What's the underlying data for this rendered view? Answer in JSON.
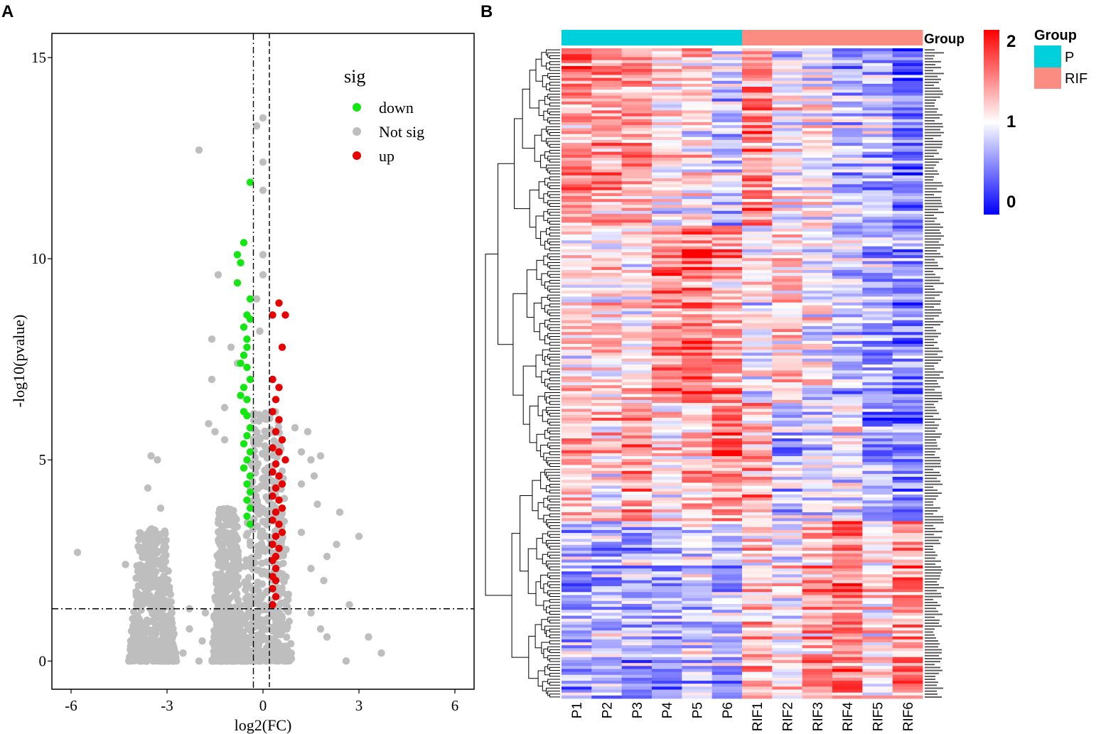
{
  "panel_a_letter": "A",
  "panel_b_letter": "B",
  "chart_data": [
    {
      "type": "scatter",
      "title": "",
      "xlabel": "log2(FC)",
      "ylabel": "-log10(pvalue)",
      "xlim": [
        -6.6,
        6.6
      ],
      "ylim": [
        -0.7,
        15.6
      ],
      "xticks": [
        -6,
        -3,
        0,
        3,
        6
      ],
      "yticks": [
        0,
        5,
        10,
        15
      ],
      "threshold_lines": {
        "x": [
          -0.3,
          0.2
        ],
        "y": 1.3
      },
      "legend": {
        "title": "sig",
        "placement": "top-right",
        "entries": [
          {
            "label": "down",
            "color": "#14e614"
          },
          {
            "label": "Not sig",
            "color": "#bebebe"
          },
          {
            "label": "up",
            "color": "#e60000"
          }
        ]
      },
      "colors": {
        "down": "#14e614",
        "notsig": "#bebebe",
        "up": "#e60000"
      },
      "clusters": [
        {
          "sig": "notsig",
          "xmin": -4.2,
          "xmax": -2.7,
          "ymin": 0.0,
          "ymax": 3.3,
          "count": 520
        },
        {
          "sig": "notsig",
          "xmin": -1.6,
          "xmax": -0.6,
          "ymin": 0.0,
          "ymax": 3.8,
          "count": 520
        },
        {
          "sig": "notsig",
          "xmin": -0.7,
          "xmax": 0.9,
          "ymin": 0.0,
          "ymax": 6.2,
          "count": 560
        }
      ],
      "points": {
        "notsig": [
          [
            -5.8,
            2.7
          ],
          [
            -4.3,
            2.4
          ],
          [
            -3.5,
            5.1
          ],
          [
            -3.3,
            5.0
          ],
          [
            -3.6,
            4.3
          ],
          [
            -3.2,
            3.8
          ],
          [
            -2.0,
            12.7
          ],
          [
            -0.2,
            13.3
          ],
          [
            0.0,
            13.5
          ],
          [
            0.0,
            12.4
          ],
          [
            0.0,
            11.7
          ],
          [
            0.0,
            10.1
          ],
          [
            0.0,
            9.6
          ],
          [
            -0.2,
            9.0
          ],
          [
            -0.1,
            8.2
          ],
          [
            -1.4,
            9.6
          ],
          [
            -1.6,
            8.0
          ],
          [
            -1.0,
            7.8
          ],
          [
            -0.8,
            7.4
          ],
          [
            -1.6,
            7.0
          ],
          [
            -1.2,
            6.3
          ],
          [
            -1.5,
            5.7
          ],
          [
            -1.2,
            5.5
          ],
          [
            -1.7,
            5.9
          ],
          [
            1.0,
            5.8
          ],
          [
            1.4,
            5.7
          ],
          [
            1.2,
            5.2
          ],
          [
            1.5,
            5.0
          ],
          [
            1.8,
            5.1
          ],
          [
            1.6,
            4.6
          ],
          [
            1.2,
            4.4
          ],
          [
            2.4,
            3.7
          ],
          [
            3.0,
            3.1
          ],
          [
            2.3,
            2.9
          ],
          [
            2.0,
            2.6
          ],
          [
            1.5,
            2.3
          ],
          [
            1.9,
            2.0
          ],
          [
            2.7,
            1.4
          ],
          [
            3.3,
            0.6
          ],
          [
            3.7,
            0.2
          ],
          [
            2.0,
            0.6
          ],
          [
            2.6,
            0.0
          ],
          [
            1.5,
            1.2
          ],
          [
            1.8,
            0.8
          ],
          [
            -2.3,
            1.3
          ],
          [
            -2.3,
            0.8
          ],
          [
            -2.5,
            0.2
          ],
          [
            -1.8,
            1.2
          ],
          [
            -1.9,
            0.5
          ],
          [
            -2.0,
            0.0
          ],
          [
            1.2,
            3.2
          ],
          [
            1.7,
            3.9
          ]
        ],
        "down": [
          [
            -0.4,
            11.9
          ],
          [
            -0.6,
            10.4
          ],
          [
            -0.8,
            10.1
          ],
          [
            -0.7,
            9.9
          ],
          [
            -0.8,
            9.4
          ],
          [
            -0.4,
            9.0
          ],
          [
            -0.5,
            8.6
          ],
          [
            -0.4,
            8.5
          ],
          [
            -0.6,
            8.3
          ],
          [
            -0.5,
            8.0
          ],
          [
            -0.5,
            7.8
          ],
          [
            -0.6,
            7.6
          ],
          [
            -0.7,
            7.4
          ],
          [
            -0.5,
            7.3
          ],
          [
            -0.4,
            7.0
          ],
          [
            -0.6,
            6.8
          ],
          [
            -0.7,
            6.6
          ],
          [
            -0.5,
            6.5
          ],
          [
            -0.6,
            6.2
          ],
          [
            -0.5,
            6.1
          ],
          [
            -0.4,
            5.8
          ],
          [
            -0.5,
            5.6
          ],
          [
            -0.6,
            5.4
          ],
          [
            -0.4,
            5.2
          ],
          [
            -0.5,
            5.0
          ],
          [
            -0.6,
            4.8
          ],
          [
            -0.4,
            4.6
          ],
          [
            -0.5,
            4.4
          ],
          [
            -0.4,
            4.2
          ],
          [
            -0.5,
            4.0
          ],
          [
            -0.4,
            3.8
          ],
          [
            -0.5,
            3.6
          ],
          [
            -0.4,
            3.4
          ]
        ],
        "up": [
          [
            0.5,
            8.9
          ],
          [
            0.7,
            8.6
          ],
          [
            0.3,
            8.6
          ],
          [
            0.6,
            7.8
          ],
          [
            0.3,
            7.0
          ],
          [
            0.5,
            6.8
          ],
          [
            0.4,
            6.5
          ],
          [
            0.3,
            6.2
          ],
          [
            0.5,
            6.0
          ],
          [
            0.4,
            5.7
          ],
          [
            0.6,
            5.5
          ],
          [
            0.3,
            5.3
          ],
          [
            0.5,
            5.2
          ],
          [
            0.7,
            5.0
          ],
          [
            0.4,
            4.9
          ],
          [
            0.3,
            4.7
          ],
          [
            0.5,
            4.6
          ],
          [
            0.6,
            4.4
          ],
          [
            0.4,
            4.3
          ],
          [
            0.3,
            4.1
          ],
          [
            0.5,
            4.0
          ],
          [
            0.6,
            3.8
          ],
          [
            0.4,
            3.7
          ],
          [
            0.3,
            3.5
          ],
          [
            0.5,
            3.4
          ],
          [
            0.6,
            3.2
          ],
          [
            0.4,
            3.1
          ],
          [
            0.3,
            2.9
          ],
          [
            0.5,
            2.8
          ],
          [
            0.4,
            2.6
          ],
          [
            0.3,
            2.5
          ],
          [
            0.4,
            2.3
          ],
          [
            0.3,
            2.1
          ],
          [
            0.4,
            2.0
          ],
          [
            0.3,
            1.8
          ],
          [
            0.4,
            1.6
          ],
          [
            0.3,
            1.4
          ]
        ]
      }
    },
    {
      "type": "heatmap",
      "title": "",
      "samples": [
        "P1",
        "P2",
        "P3",
        "P4",
        "P5",
        "P6",
        "RIF1",
        "RIF2",
        "RIF3",
        "RIF4",
        "RIF5",
        "RIF6"
      ],
      "sample_groups": [
        "P",
        "P",
        "P",
        "P",
        "P",
        "P",
        "RIF",
        "RIF",
        "RIF",
        "RIF",
        "RIF",
        "RIF"
      ],
      "row_count": 220,
      "value_range": [
        0,
        2
      ],
      "colorbar": {
        "ticks": [
          0,
          1,
          2
        ],
        "tick_labels": [
          "0",
          "1",
          "2"
        ],
        "low_color": "#0000ff",
        "mid_color": "#ffffff",
        "high_color": "#ff0000"
      },
      "annotation_track_label": "Group",
      "group_legend": {
        "title": "Group",
        "entries": [
          {
            "label": "P",
            "color": "#00d0dc"
          },
          {
            "label": "RIF",
            "color": "#fa8c82"
          }
        ]
      },
      "block_patterns": [
        {
          "rows": [
            0,
            60
          ],
          "trend": "P high, RIF6 low"
        },
        {
          "rows": [
            60,
            120
          ],
          "trend": "mixed, P4/P5/P6 high"
        },
        {
          "rows": [
            120,
            160
          ],
          "trend": "P high, RIF low"
        },
        {
          "rows": [
            160,
            220
          ],
          "trend": "P low, RIF high"
        }
      ],
      "note": "Row-wise heatmap of differentially expressed genes with hierarchical clustering dendrogram on the left and gene labels on the right."
    }
  ]
}
